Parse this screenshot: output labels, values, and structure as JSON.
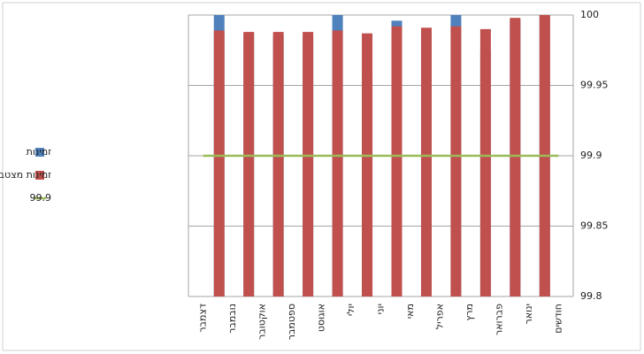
{
  "chart_data": {
    "type": "bar",
    "categories": [
      "חודשים",
      "ינואר",
      "פברואר",
      "מרץ",
      "אפריל",
      "מאי",
      "יוני",
      "יולי",
      "אוגוסט",
      "ספטמבר",
      "אוקטובר",
      "נובמבר",
      "דצמבר"
    ],
    "series": [
      {
        "name": "זמינות",
        "color": "#4f81bd",
        "type": "bar",
        "values": [
          null,
          100,
          99.996,
          99.974,
          100,
          99.987,
          99.996,
          99.957,
          100,
          99.985,
          99.985,
          99.987,
          100
        ]
      },
      {
        "name": "זמינות מצטבר",
        "color": "#c0504d",
        "type": "bar",
        "values": [
          null,
          100,
          99.998,
          99.99,
          99.992,
          99.991,
          99.992,
          99.987,
          99.989,
          99.988,
          99.988,
          99.988,
          99.989
        ]
      },
      {
        "name": "99.9",
        "color": "#9bbb59",
        "type": "line",
        "values": [
          99.9,
          99.9,
          99.9,
          99.9,
          99.9,
          99.9,
          99.9,
          99.9,
          99.9,
          99.9,
          99.9,
          99.9,
          99.9
        ]
      }
    ],
    "ylim": [
      99.8,
      100
    ],
    "yticks": [
      99.8,
      99.85,
      99.9,
      99.95,
      100
    ],
    "grid": true,
    "x_reversed": true,
    "y_axis_side": "right",
    "legend": "left"
  }
}
